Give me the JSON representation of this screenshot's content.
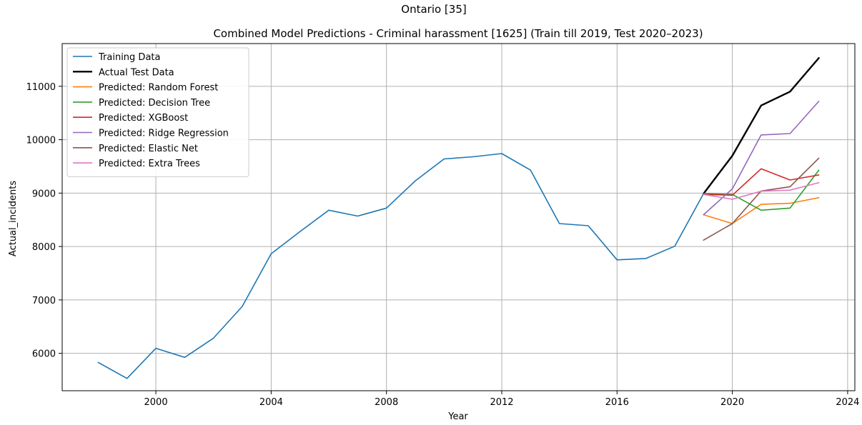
{
  "suptitle": "Ontario [35]",
  "chart_data": {
    "type": "line",
    "title": "Combined Model Predictions - Criminal harassment [1625] (Train till 2019, Test 2020–2023)",
    "xlabel": "Year",
    "ylabel": "Actual_incidents",
    "xlim": [
      1996.75,
      2024.25
    ],
    "ylim": [
      5300,
      11800
    ],
    "xticks": [
      2000,
      2004,
      2008,
      2012,
      2016,
      2020,
      2024
    ],
    "yticks": [
      6000,
      7000,
      8000,
      9000,
      10000,
      11000
    ],
    "grid": true,
    "legend_position": "upper left",
    "series": [
      {
        "name": "Training Data",
        "color": "#1f77b4",
        "width": 1.6,
        "x": [
          1998,
          1999,
          2000,
          2001,
          2002,
          2003,
          2004,
          2005,
          2006,
          2007,
          2008,
          2009,
          2010,
          2011,
          2012,
          2013,
          2014,
          2015,
          2016,
          2017,
          2018,
          2019
        ],
        "y": [
          5830,
          5530,
          6095,
          5925,
          6285,
          6880,
          7865,
          8280,
          8680,
          8570,
          8720,
          9230,
          9640,
          9680,
          9740,
          9430,
          8430,
          8390,
          7750,
          7775,
          8005,
          8990
        ]
      },
      {
        "name": "Actual Test Data",
        "color": "#000000",
        "width": 2.4,
        "x": [
          2019,
          2020,
          2021,
          2022,
          2023
        ],
        "y": [
          8990,
          9700,
          10640,
          10900,
          11530
        ]
      },
      {
        "name": "Predicted: Random Forest",
        "color": "#ff7f0e",
        "width": 1.6,
        "x": [
          2019,
          2020,
          2021,
          2022,
          2023
        ],
        "y": [
          8595,
          8430,
          8790,
          8810,
          8915
        ]
      },
      {
        "name": "Predicted: Decision Tree",
        "color": "#2ca02c",
        "width": 1.6,
        "x": [
          2019,
          2020,
          2021,
          2022,
          2023
        ],
        "y": [
          8990,
          8975,
          8680,
          8720,
          9430
        ]
      },
      {
        "name": "Predicted: XGBoost",
        "color": "#d62728",
        "width": 1.6,
        "x": [
          2019,
          2020,
          2021,
          2022,
          2023
        ],
        "y": [
          8975,
          8960,
          9455,
          9245,
          9340
        ]
      },
      {
        "name": "Predicted: Ridge Regression",
        "color": "#9467bd",
        "width": 1.6,
        "x": [
          2019,
          2020,
          2021,
          2022,
          2023
        ],
        "y": [
          8595,
          9080,
          10090,
          10115,
          10720
        ]
      },
      {
        "name": "Predicted: Elastic Net",
        "color": "#8c564b",
        "width": 1.6,
        "x": [
          2019,
          2020,
          2021,
          2022,
          2023
        ],
        "y": [
          8120,
          8430,
          9040,
          9120,
          9655
        ]
      },
      {
        "name": "Predicted: Extra Trees",
        "color": "#e377c2",
        "width": 1.6,
        "x": [
          2019,
          2020,
          2021,
          2022,
          2023
        ],
        "y": [
          8975,
          8885,
          9035,
          9055,
          9195
        ]
      }
    ]
  }
}
